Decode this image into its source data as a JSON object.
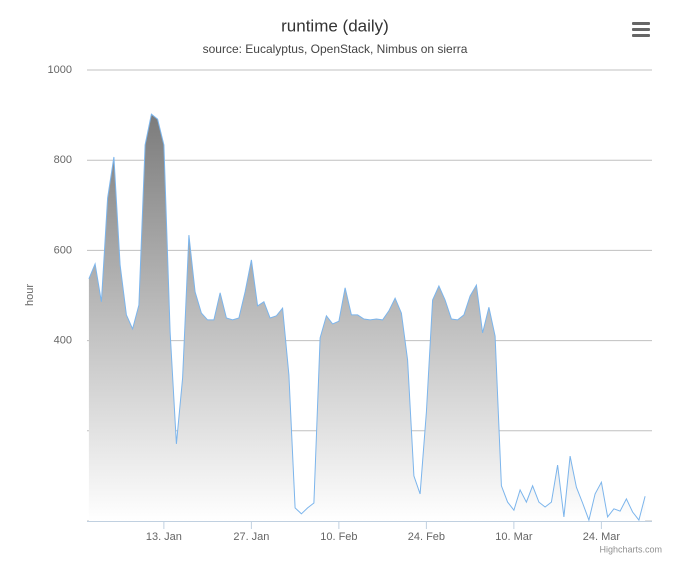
{
  "chart_data": {
    "type": "area",
    "title": "runtime (daily)",
    "subtitle": "source: Eucalyptus, OpenStack, Nimbus on sierra",
    "y_label": "hour",
    "credit": "Highcharts.com",
    "x": [
      1,
      2,
      3,
      4,
      5,
      6,
      7,
      8,
      9,
      10,
      11,
      12,
      13,
      14,
      15,
      16,
      17,
      18,
      19,
      20,
      21,
      22,
      23,
      24,
      25,
      26,
      27,
      28,
      29,
      30,
      31,
      32,
      33,
      34,
      35,
      36,
      37,
      38,
      39,
      40,
      41,
      42,
      43,
      44,
      45,
      46,
      47,
      48,
      49,
      50,
      51,
      52,
      53,
      54,
      55,
      56,
      57,
      58,
      59,
      60,
      61,
      62,
      63,
      64,
      65,
      66,
      67,
      68,
      69,
      70,
      71,
      72,
      73,
      74,
      75,
      76,
      77,
      78,
      79,
      80,
      81,
      82,
      83,
      84,
      85,
      86,
      87,
      88,
      89,
      90
    ],
    "series": [
      {
        "name": "runtime",
        "color": "#7cb5ec",
        "values": [
          537,
          570,
          486,
          716,
          807,
          568,
          457,
          426,
          479,
          834,
          902,
          891,
          834,
          420,
          171,
          317,
          634,
          508,
          461,
          446,
          446,
          506,
          450,
          446,
          450,
          508,
          579,
          477,
          486,
          450,
          455,
          472,
          324,
          29,
          16,
          29,
          40,
          406,
          455,
          437,
          443,
          517,
          457,
          457,
          448,
          446,
          448,
          446,
          466,
          494,
          461,
          357,
          100,
          60,
          242,
          490,
          521,
          490,
          448,
          446,
          457,
          499,
          523,
          417,
          474,
          410,
          78,
          42,
          24,
          69,
          42,
          78,
          42,
          31,
          42,
          124,
          9,
          144,
          75,
          40,
          2,
          60,
          86,
          9,
          27,
          22,
          49,
          20,
          2,
          55
        ]
      }
    ],
    "xlim": [
      0.7,
      91.1
    ],
    "xticks": [
      {
        "value": 13,
        "label": "13. Jan"
      },
      {
        "value": 27,
        "label": "27. Jan"
      },
      {
        "value": 41,
        "label": "10. Feb"
      },
      {
        "value": 55,
        "label": "24. Feb"
      },
      {
        "value": 69,
        "label": "10. Mar"
      },
      {
        "value": 83,
        "label": "24. Mar"
      }
    ],
    "ylim": [
      0,
      1000
    ],
    "yticks": [
      {
        "value": 0,
        "label": null
      },
      {
        "value": 200,
        "label": null
      },
      400,
      600,
      800,
      1000
    ],
    "grid": true
  }
}
